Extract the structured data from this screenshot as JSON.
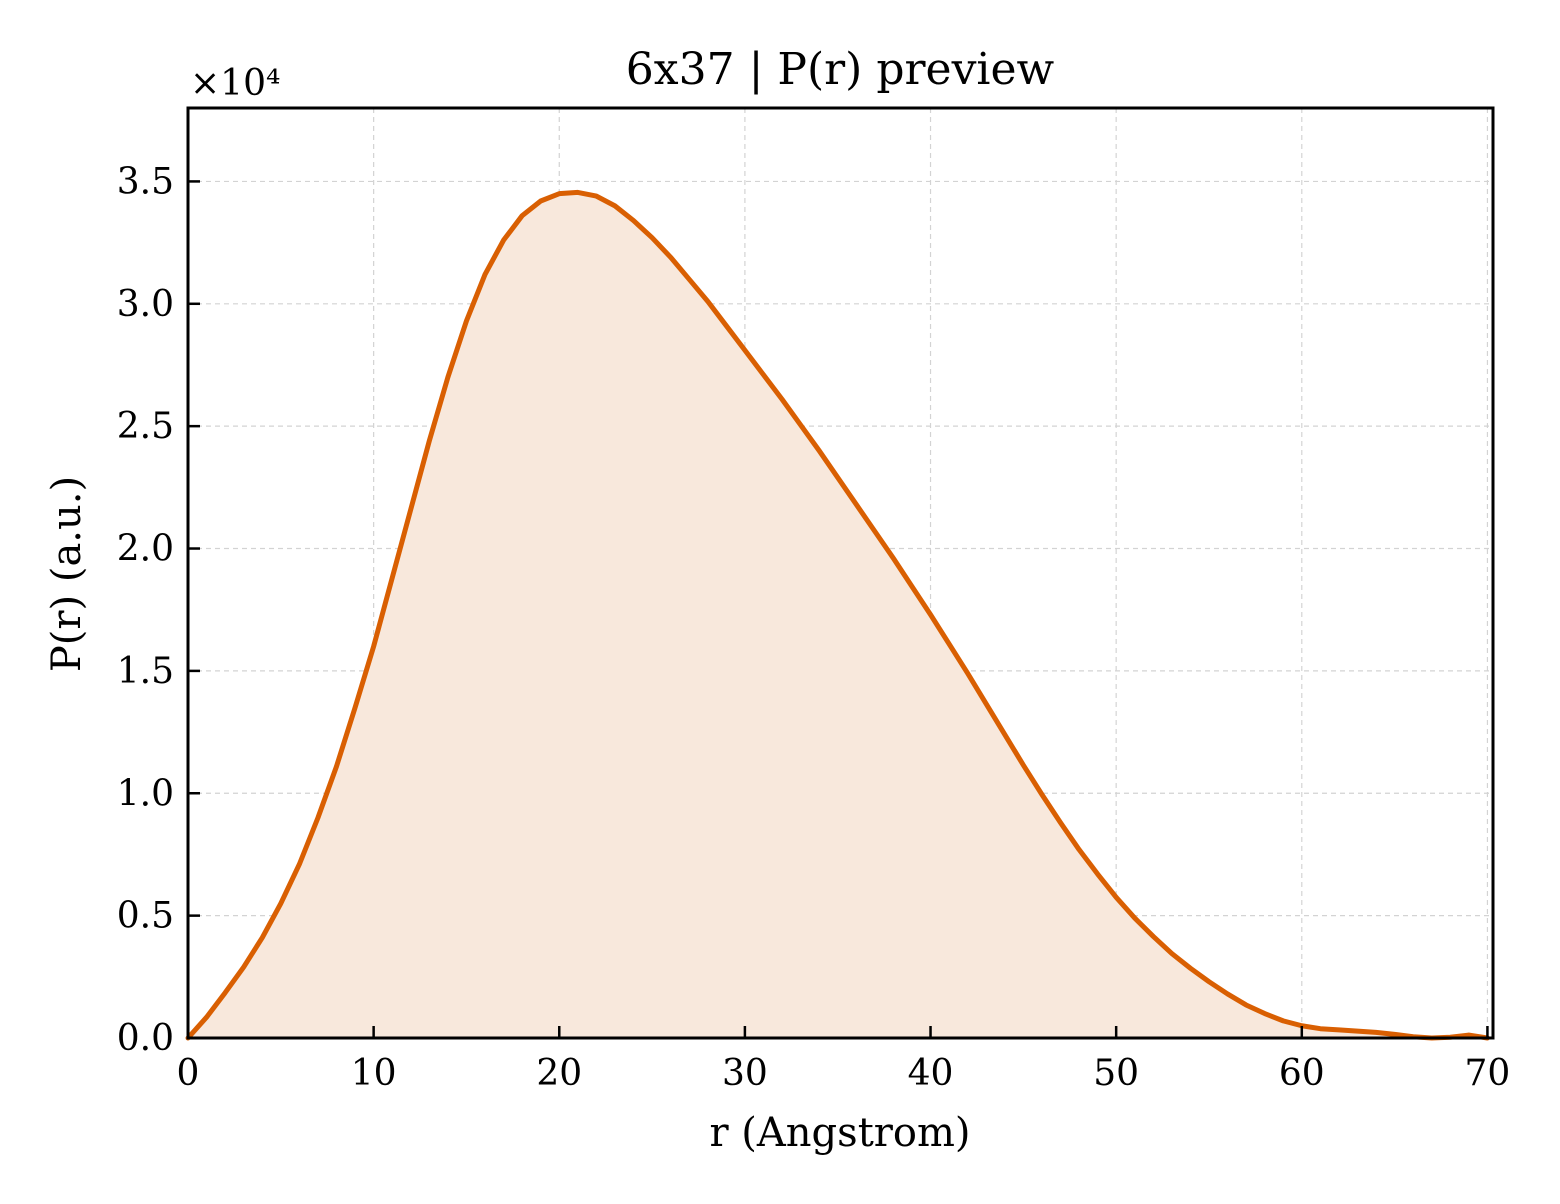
{
  "chart_data": {
    "type": "area",
    "title": "6x37 | P(r) preview",
    "xlabel": "r (Angstrom)",
    "ylabel": "P(r) (a.u.)",
    "y_multiplier_label": "×10⁴",
    "xlim": [
      0,
      70.3
    ],
    "ylim": [
      0,
      38000
    ],
    "x_ticks": [
      0,
      10,
      20,
      30,
      40,
      50,
      60,
      70
    ],
    "x_tick_labels": [
      "0",
      "10",
      "20",
      "30",
      "40",
      "50",
      "60",
      "70"
    ],
    "y_ticks": [
      0,
      5000,
      10000,
      15000,
      20000,
      25000,
      30000,
      35000
    ],
    "y_tick_labels": [
      "0.0",
      "0.5",
      "1.0",
      "1.5",
      "2.0",
      "2.5",
      "3.0",
      "3.5"
    ],
    "grid": true,
    "series": [
      {
        "line_color": "#d95f02",
        "fill_color": "#f8e8dc",
        "x": [
          0,
          1,
          2,
          3,
          4,
          5,
          6,
          7,
          8,
          9,
          10,
          11,
          12,
          13,
          14,
          15,
          16,
          17,
          18,
          19,
          20,
          21,
          22,
          23,
          24,
          25,
          26,
          27,
          28,
          29,
          30,
          31,
          32,
          33,
          34,
          35,
          36,
          37,
          38,
          39,
          40,
          41,
          42,
          43,
          44,
          45,
          46,
          47,
          48,
          49,
          50,
          51,
          52,
          53,
          54,
          55,
          56,
          57,
          58,
          59,
          60,
          61,
          62,
          63,
          64,
          65,
          66,
          67,
          68,
          69,
          70
        ],
        "y": [
          0,
          850,
          1850,
          2900,
          4100,
          5500,
          7100,
          9000,
          11100,
          13500,
          16000,
          18800,
          21600,
          24400,
          27000,
          29300,
          31200,
          32600,
          33600,
          34200,
          34500,
          34550,
          34400,
          34000,
          33400,
          32700,
          31900,
          31000,
          30100,
          29100,
          28100,
          27100,
          26100,
          25050,
          24000,
          22900,
          21800,
          20700,
          19600,
          18450,
          17300,
          16100,
          14900,
          13650,
          12400,
          11150,
          9950,
          8800,
          7700,
          6700,
          5750,
          4900,
          4150,
          3450,
          2850,
          2300,
          1800,
          1350,
          1000,
          700,
          500,
          380,
          330,
          280,
          230,
          150,
          50,
          0,
          30,
          120,
          0
        ]
      }
    ]
  }
}
